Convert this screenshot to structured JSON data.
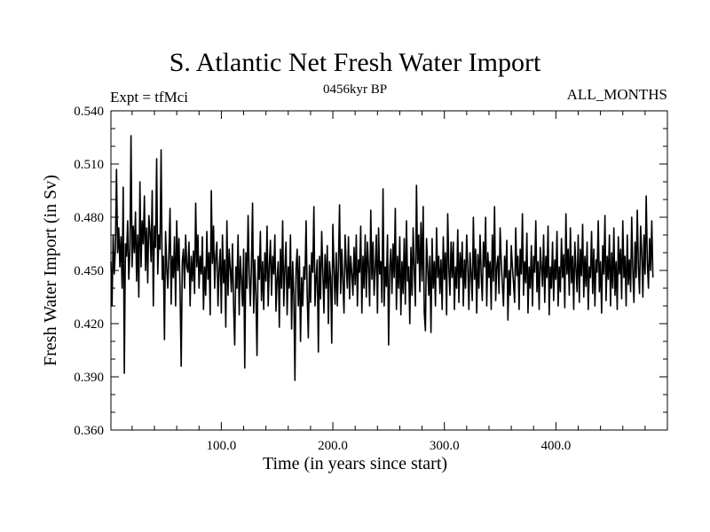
{
  "chart_data": {
    "type": "line",
    "title": "S. Atlantic Net Fresh Water Import",
    "subtitle": "0456kyr BP",
    "annotation_left": "Expt = tfMci",
    "annotation_right": "ALL_MONTHS",
    "xlabel": "Time (in years since start)",
    "ylabel": "Fresh Water Import (in Sv)",
    "xlim": [
      1,
      500
    ],
    "ylim": [
      0.36,
      0.54
    ],
    "x_ticks": [
      100,
      200,
      300,
      400
    ],
    "x_tick_labels": [
      "100.0",
      "200.0",
      "300.0",
      "400.0"
    ],
    "y_ticks": [
      0.36,
      0.39,
      0.42,
      0.45,
      0.48,
      0.51,
      0.54
    ],
    "y_tick_labels": [
      "0.360",
      "0.390",
      "0.420",
      "0.450",
      "0.480",
      "0.510",
      "0.540"
    ],
    "grid": false,
    "series": [
      {
        "color": "#000000",
        "x_start": 1,
        "x_step": 1,
        "values": [
          0.455,
          0.43,
          0.47,
          0.448,
          0.462,
          0.507,
          0.46,
          0.474,
          0.452,
          0.469,
          0.44,
          0.497,
          0.392,
          0.465,
          0.458,
          0.478,
          0.445,
          0.46,
          0.526,
          0.452,
          0.475,
          0.46,
          0.483,
          0.444,
          0.47,
          0.435,
          0.5,
          0.452,
          0.478,
          0.465,
          0.492,
          0.45,
          0.474,
          0.443,
          0.481,
          0.472,
          0.455,
          0.495,
          0.43,
          0.475,
          0.463,
          0.513,
          0.448,
          0.47,
          0.462,
          0.518,
          0.445,
          0.458,
          0.411,
          0.472,
          0.452,
          0.44,
          0.46,
          0.485,
          0.431,
          0.458,
          0.446,
          0.469,
          0.43,
          0.478,
          0.45,
          0.468,
          0.438,
          0.396,
          0.455,
          0.462,
          0.44,
          0.47,
          0.452,
          0.449,
          0.466,
          0.43,
          0.458,
          0.444,
          0.461,
          0.437,
          0.488,
          0.452,
          0.47,
          0.44,
          0.458,
          0.448,
          0.469,
          0.428,
          0.452,
          0.436,
          0.472,
          0.445,
          0.46,
          0.425,
          0.495,
          0.454,
          0.475,
          0.44,
          0.458,
          0.466,
          0.43,
          0.45,
          0.462,
          0.426,
          0.47,
          0.443,
          0.456,
          0.418,
          0.478,
          0.436,
          0.462,
          0.451,
          0.438,
          0.465,
          0.43,
          0.408,
          0.452,
          0.44,
          0.47,
          0.425,
          0.458,
          0.445,
          0.43,
          0.462,
          0.395,
          0.46,
          0.44,
          0.481,
          0.448,
          0.43,
          0.452,
          0.488,
          0.426,
          0.456,
          0.436,
          0.402,
          0.458,
          0.445,
          0.472,
          0.433,
          0.455,
          0.428,
          0.46,
          0.444,
          0.475,
          0.43,
          0.452,
          0.467,
          0.436,
          0.458,
          0.448,
          0.47,
          0.427,
          0.445,
          0.455,
          0.418,
          0.462,
          0.44,
          0.478,
          0.43,
          0.451,
          0.466,
          0.425,
          0.452,
          0.44,
          0.47,
          0.417,
          0.455,
          0.436,
          0.388,
          0.451,
          0.462,
          0.43,
          0.458,
          0.41,
          0.446,
          0.43,
          0.452,
          0.445,
          0.478,
          0.436,
          0.412,
          0.453,
          0.432,
          0.46,
          0.449,
          0.486,
          0.43,
          0.446,
          0.456,
          0.404,
          0.458,
          0.434,
          0.472,
          0.45,
          0.426,
          0.459,
          0.44,
          0.464,
          0.42,
          0.455,
          0.446,
          0.409,
          0.476,
          0.452,
          0.431,
          0.46,
          0.43,
          0.453,
          0.487,
          0.437,
          0.462,
          0.444,
          0.426,
          0.47,
          0.452,
          0.44,
          0.469,
          0.434,
          0.458,
          0.448,
          0.436,
          0.463,
          0.442,
          0.47,
          0.43,
          0.456,
          0.449,
          0.475,
          0.426,
          0.458,
          0.44,
          0.47,
          0.435,
          0.466,
          0.452,
          0.43,
          0.484,
          0.445,
          0.466,
          0.436,
          0.451,
          0.47,
          0.426,
          0.474,
          0.448,
          0.455,
          0.432,
          0.496,
          0.43,
          0.452,
          0.441,
          0.47,
          0.408,
          0.451,
          0.462,
          0.437,
          0.465,
          0.446,
          0.485,
          0.428,
          0.458,
          0.44,
          0.469,
          0.425,
          0.455,
          0.437,
          0.468,
          0.431,
          0.478,
          0.444,
          0.452,
          0.42,
          0.463,
          0.436,
          0.474,
          0.45,
          0.43,
          0.498,
          0.454,
          0.47,
          0.438,
          0.477,
          0.444,
          0.486,
          0.426,
          0.416,
          0.468,
          0.452,
          0.436,
          0.458,
          0.415,
          0.468,
          0.44,
          0.455,
          0.43,
          0.474,
          0.446,
          0.458,
          0.437,
          0.456,
          0.428,
          0.469,
          0.445,
          0.46,
          0.425,
          0.482,
          0.452,
          0.436,
          0.466,
          0.446,
          0.466,
          0.428,
          0.452,
          0.44,
          0.473,
          0.432,
          0.46,
          0.446,
          0.466,
          0.43,
          0.456,
          0.44,
          0.47,
          0.452,
          0.428,
          0.46,
          0.448,
          0.433,
          0.48,
          0.445,
          0.462,
          0.426,
          0.459,
          0.44,
          0.47,
          0.448,
          0.433,
          0.466,
          0.452,
          0.48,
          0.43,
          0.46,
          0.446,
          0.455,
          0.428,
          0.47,
          0.444,
          0.486,
          0.433,
          0.452,
          0.458,
          0.437,
          0.474,
          0.455,
          0.442,
          0.43,
          0.458,
          0.446,
          0.467,
          0.422,
          0.45,
          0.436,
          0.464,
          0.452,
          0.443,
          0.432,
          0.474,
          0.447,
          0.458,
          0.428,
          0.462,
          0.448,
          0.482,
          0.436,
          0.455,
          0.443,
          0.471,
          0.426,
          0.452,
          0.44,
          0.464,
          0.43,
          0.458,
          0.449,
          0.478,
          0.438,
          0.455,
          0.428,
          0.463,
          0.452,
          0.441,
          0.47,
          0.432,
          0.458,
          0.446,
          0.475,
          0.425,
          0.452,
          0.44,
          0.466,
          0.433,
          0.456,
          0.445,
          0.472,
          0.43,
          0.452,
          0.438,
          0.468,
          0.446,
          0.459,
          0.429,
          0.482,
          0.448,
          0.462,
          0.436,
          0.474,
          0.443,
          0.458,
          0.428,
          0.466,
          0.451,
          0.438,
          0.47,
          0.432,
          0.462,
          0.447,
          0.476,
          0.435,
          0.458,
          0.441,
          0.466,
          0.428,
          0.452,
          0.446,
          0.472,
          0.437,
          0.462,
          0.43,
          0.456,
          0.449,
          0.478,
          0.438,
          0.455,
          0.426,
          0.464,
          0.448,
          0.481,
          0.433,
          0.458,
          0.445,
          0.47,
          0.43,
          0.46,
          0.44,
          0.474,
          0.436,
          0.455,
          0.428,
          0.469,
          0.448,
          0.462,
          0.434,
          0.478,
          0.446,
          0.458,
          0.43,
          0.47,
          0.442,
          0.456,
          0.438,
          0.48,
          0.45,
          0.432,
          0.466,
          0.446,
          0.484,
          0.452,
          0.437,
          0.475,
          0.46,
          0.435,
          0.47,
          0.448,
          0.492,
          0.455,
          0.44,
          0.468,
          0.45,
          0.478,
          0.446
        ]
      }
    ]
  }
}
